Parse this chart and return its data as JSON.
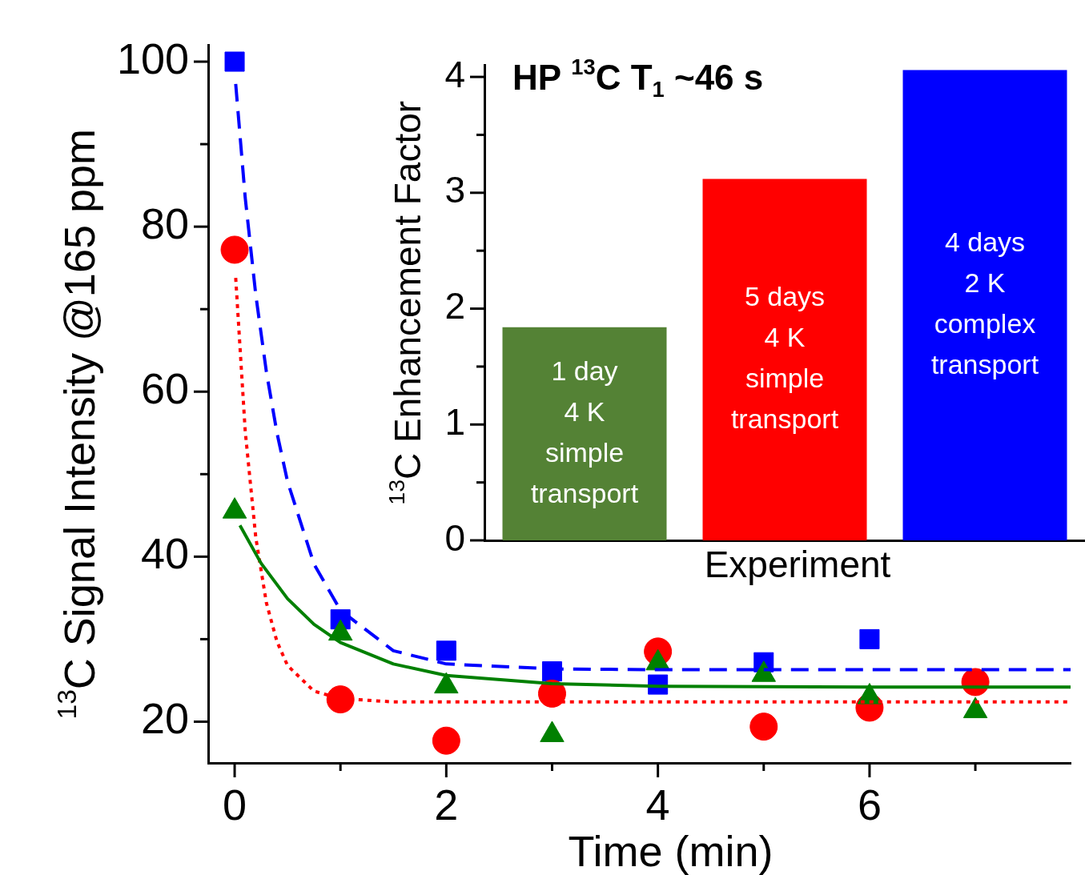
{
  "chart_data": [
    {
      "type": "scatter",
      "xlabel": "Time (min)",
      "ylabel": "$^{13}$C Signal Intensity @165 ppm",
      "x": [
        0,
        1,
        2,
        3,
        4,
        5,
        6,
        7
      ],
      "xlim": [
        -0.25,
        7.9
      ],
      "ylim": [
        15,
        102
      ],
      "xticks": [
        0,
        {
          "value": 1,
          "label": null
        },
        2,
        {
          "value": 3,
          "label": null
        },
        4,
        {
          "value": 5,
          "label": null
        },
        6,
        {
          "value": 7,
          "label": null
        }
      ],
      "yticks": [
        20,
        {
          "value": 30,
          "label": null
        },
        40,
        {
          "value": 50,
          "label": null
        },
        60,
        {
          "value": 70,
          "label": null
        },
        80,
        {
          "value": 90,
          "label": null
        },
        100
      ],
      "grid": false,
      "legend": false,
      "series": [
        {
          "type": "scatter",
          "marker": "square",
          "color": "#0000ff",
          "values": [
            100,
            32.4,
            28.6,
            26.1,
            24.5,
            27.2,
            30.0,
            null
          ]
        },
        {
          "type": "scatter",
          "marker": "circle",
          "color": "#ff0000",
          "values": [
            77.2,
            22.7,
            17.7,
            23.4,
            28.5,
            19.4,
            21.7,
            24.8
          ]
        },
        {
          "type": "scatter",
          "marker": "triangle",
          "color": "#008000",
          "values": [
            45.5,
            30.7,
            24.3,
            18.4,
            27.1,
            25.7,
            23.0,
            21.3
          ]
        },
        {
          "type": "line",
          "marker": "none",
          "line_style": "dashed",
          "color": "#0000ff",
          "x": [
            0.01,
            0.1,
            0.2,
            0.3,
            0.4,
            0.5,
            0.75,
            1,
            1.5,
            2,
            3,
            4,
            6,
            7.9
          ],
          "values": [
            97.3,
            83.5,
            71.7,
            62.4,
            55.0,
            49.1,
            39.1,
            33.5,
            28.6,
            27.0,
            26.4,
            26.3,
            26.3,
            26.3
          ]
        },
        {
          "type": "line",
          "marker": "none",
          "line_style": "dotted",
          "color": "#ff0000",
          "x": [
            0.01,
            0.1,
            0.2,
            0.3,
            0.4,
            0.5,
            0.75,
            1,
            1.5,
            2,
            4,
            6,
            7.9
          ],
          "values": [
            73.8,
            55.2,
            42.3,
            34.4,
            29.7,
            26.8,
            23.7,
            22.8,
            22.4,
            22.4,
            22.4,
            22.4,
            22.4
          ]
        },
        {
          "type": "line",
          "marker": "none",
          "line_style": "solid",
          "color": "#008000",
          "x": [
            0.05,
            0.25,
            0.5,
            0.75,
            1,
            1.5,
            2,
            3,
            4,
            6,
            7.9
          ],
          "values": [
            43.8,
            39.2,
            34.9,
            31.8,
            29.6,
            27.0,
            25.6,
            24.6,
            24.3,
            24.2,
            24.2
          ]
        }
      ]
    },
    {
      "type": "bar",
      "title": "HP $^{13}$C T$_{1}$ ~46 s",
      "xlabel": "Experiment",
      "ylabel": "$^{13}$C Enhancement Factor",
      "categories": [
        "1 day\n4 K\nsimple\ntransport",
        "5 days\n4 K\nsimple\ntransport",
        "4 days\n2 K\ncomplex\ntransport"
      ],
      "values": [
        1.84,
        3.12,
        4.06
      ],
      "colors": [
        "#548235",
        "#ff0000",
        "#0000ff"
      ],
      "ylim": [
        0,
        4.1
      ],
      "yticks": [
        0,
        {
          "value": 0.5,
          "label": null
        },
        1,
        {
          "value": 1.5,
          "label": null
        },
        2,
        {
          "value": 2.5,
          "label": null
        },
        3,
        {
          "value": 3.5,
          "label": null
        },
        4
      ],
      "grid": false,
      "legend": false
    }
  ]
}
